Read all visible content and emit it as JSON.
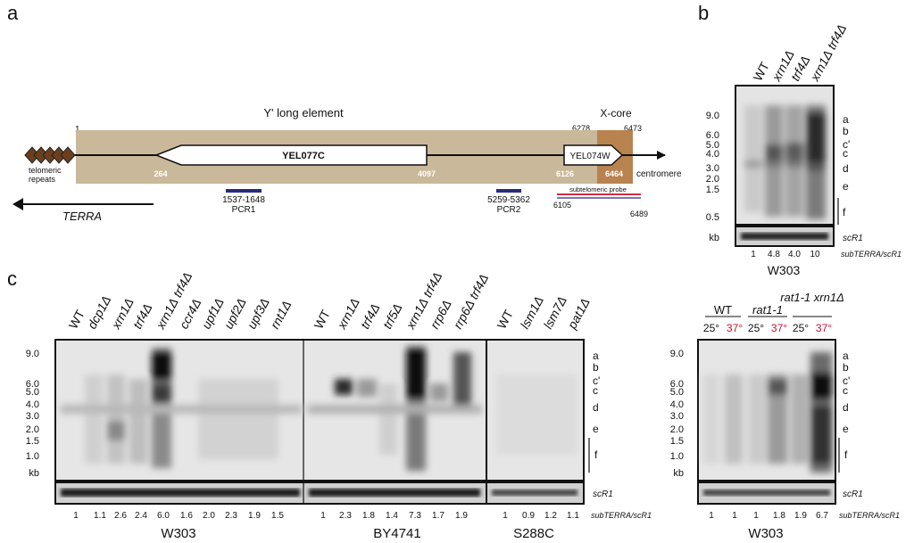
{
  "panel_a": {
    "letter": "a",
    "coord_1": "1",
    "element_title": "Y' long element",
    "xcore_title": "X-core",
    "xcore_left": "6278",
    "xcore_right": "6473",
    "gene1": "YEL077C",
    "gene2": "YEL074W",
    "pos_264": "264",
    "pos_4097": "4097",
    "pos_6126": "6126",
    "pos_6464": "6464",
    "telo_label": [
      "telomeric",
      "repeats"
    ],
    "centromere": "centromere",
    "pcr1_range": "1537-1648",
    "pcr1": "PCR1",
    "pcr2_range": "5259-5362",
    "pcr2": "PCR2",
    "probe_label": "subtelomeric probe",
    "probe_left": "6105",
    "probe_right": "6489",
    "terra": "TERRA"
  },
  "panel_b": {
    "letter": "b",
    "lanes": [
      "WT",
      "xrn1Δ",
      "trf4Δ",
      "xrn1Δ trf4Δ"
    ],
    "markers": [
      "9.0",
      "6.0",
      "5.0",
      "4.0",
      "3.0",
      "2.0",
      "1.5",
      "0.5"
    ],
    "kb": "kb",
    "bands": [
      "a",
      "b",
      "c'",
      "c",
      "d",
      "e",
      "f"
    ],
    "control": "scR1",
    "ratio_label": "subTERRA/scR1",
    "ratios": [
      "1",
      "4.8",
      "4.0",
      "10"
    ],
    "strain": "W303"
  },
  "panel_c": {
    "letter": "c",
    "lanes_w303": [
      "WT",
      "dcp1Δ",
      "xrn1Δ",
      "trf4Δ",
      "xrn1Δ trf4Δ",
      "ccr4Δ",
      "upf1Δ",
      "upf2Δ",
      "upf3Δ",
      "rnt1Δ"
    ],
    "lanes_by": [
      "WT",
      "xrn1Δ",
      "trf4Δ",
      "trf5Δ",
      "xrn1Δ trf4Δ",
      "rrp6Δ",
      "rrp6Δ trf4Δ"
    ],
    "lanes_s288c": [
      "WT",
      "lsm1Δ",
      "lsm7Δ",
      "pat1Δ"
    ],
    "markers": [
      "9.0",
      "6.0",
      "5.0",
      "4.0",
      "3.0",
      "2.0",
      "1.5",
      "1.0"
    ],
    "kb": "kb",
    "bands": [
      "a",
      "b",
      "c'",
      "c",
      "d",
      "e",
      "f"
    ],
    "control": "scR1",
    "ratio_label": "subTERRA/scR1",
    "ratios_w303": [
      "1",
      "1.1",
      "2.6",
      "2.4",
      "6.0",
      "1.6",
      "2.0",
      "2.3",
      "1.9",
      "1.5"
    ],
    "ratios_by": [
      "1",
      "2.3",
      "1.8",
      "1.4",
      "7.3",
      "1.7",
      "1.9"
    ],
    "ratios_s288c": [
      "1",
      "0.9",
      "1.2",
      "1.1"
    ],
    "strain_w303": "W303",
    "strain_by": "BY4741",
    "strain_s288c": "S288C",
    "ts_groups": [
      "WT",
      "rat1-1",
      "rat1-1 xrn1Δ"
    ],
    "temp_25": "25°",
    "temp_37": "37°",
    "ratios_ts": [
      "1",
      "1",
      "1",
      "1.8",
      "1.9",
      "6.7"
    ],
    "strain_ts": "W303"
  },
  "colors": {
    "tan": "#c9b89a",
    "xcore": "#b8834f",
    "red": "#c8102e",
    "navy": "#2b2b7a",
    "diamond": "#6b3f1e"
  }
}
